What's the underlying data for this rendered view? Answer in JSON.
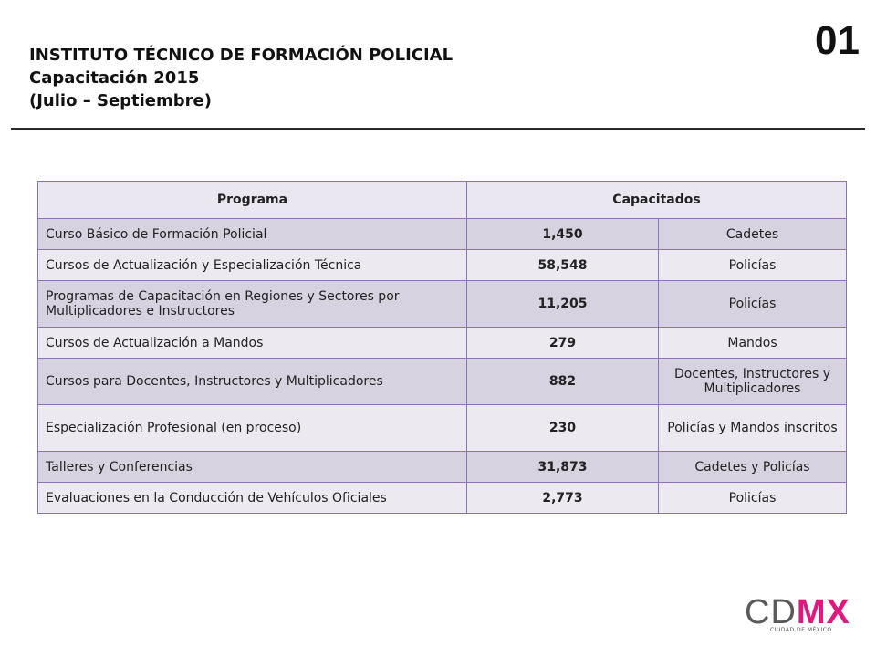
{
  "header": {
    "line1": "INSTITUTO TÉCNICO DE FORMACIÓN POLICIAL",
    "line2": "Capacitación 2015",
    "line3": "(Julio – Septiembre)"
  },
  "page_number": "01",
  "table": {
    "headers": [
      "Programa",
      "Capacitados"
    ],
    "rows": [
      {
        "programa": "Curso Básico de Formación Policial",
        "cantidad": "1,450",
        "tipo": "Cadetes"
      },
      {
        "programa": "Cursos de Actualización y Especialización Técnica",
        "cantidad": "58,548",
        "tipo": "Policías"
      },
      {
        "programa": "Programas de Capacitación en Regiones y Sectores por Multiplicadores e Instructores",
        "cantidad": "11,205",
        "tipo": "Policías"
      },
      {
        "programa": "Cursos de Actualización a Mandos",
        "cantidad": "279",
        "tipo": "Mandos"
      },
      {
        "programa": "Cursos para Docentes, Instructores y Multiplicadores",
        "cantidad": "882",
        "tipo": "Docentes, Instructores y Multiplicadores"
      },
      {
        "programa": "Especialización Profesional (en proceso)",
        "cantidad": "230",
        "tipo": "Policías y Mandos inscritos"
      },
      {
        "programa": "Talleres y Conferencias",
        "cantidad": "31,873",
        "tipo": "Cadetes y Policías"
      },
      {
        "programa": "Evaluaciones en la Conducción de Vehículos Oficiales",
        "cantidad": "2,773",
        "tipo": "Policías"
      }
    ]
  },
  "logo": {
    "text_a": "CD",
    "text_b": "MX",
    "subtitle": "CIUDAD DE MÉXICO",
    "colors": {
      "cd": "#5a5a5a",
      "mx": "#e0197e"
    }
  }
}
